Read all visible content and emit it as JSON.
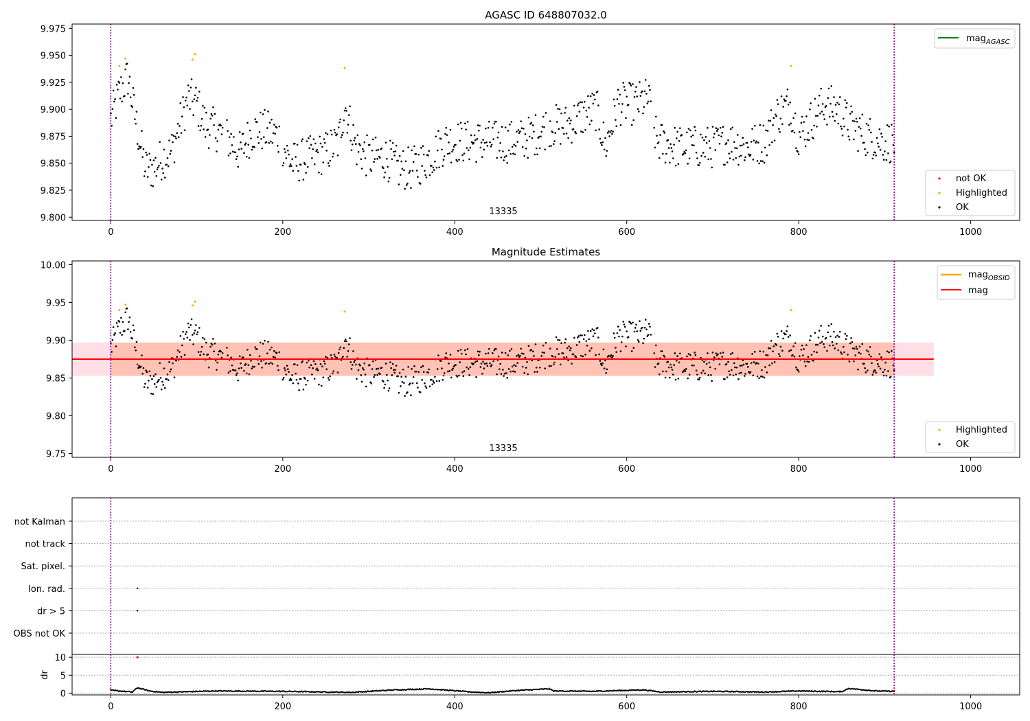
{
  "colors": {
    "ok": "#000000",
    "highlighted": "#ffa500",
    "not_ok": "#ff0000",
    "mag_agasc": "#008000",
    "mag_obsid": "#ffa500",
    "mag": "#ff0000",
    "band_outer": "#ffc0cb",
    "band_inner": "#ffa07a",
    "vline": "#800080"
  },
  "chart_data": [
    {
      "type": "scatter",
      "title": "AGASC ID 648807032.0",
      "xlim": [
        -45,
        1057
      ],
      "ylim": [
        9.797,
        9.979
      ],
      "xticks": [
        "0",
        "200",
        "400",
        "600",
        "800",
        "1000"
      ],
      "yticks": [
        "9.800",
        "9.825",
        "9.850",
        "9.875",
        "9.900",
        "9.925",
        "9.950",
        "9.975"
      ],
      "annotation": "13335",
      "vlines": [
        0,
        911
      ],
      "legend_top": [
        {
          "label": "mag",
          "sub": "AGASC",
          "color": "#008000"
        }
      ],
      "legend_bottom": [
        {
          "label": "not OK",
          "color": "#ff0000"
        },
        {
          "label": "Highlighted",
          "color": "#ffa500"
        },
        {
          "label": "OK",
          "color": "#000000"
        }
      ],
      "highlighted": [
        [
          10,
          9.94
        ],
        [
          17,
          9.947
        ],
        [
          95,
          9.946
        ],
        [
          98,
          9.951
        ],
        [
          272,
          9.938
        ],
        [
          791,
          9.94
        ]
      ],
      "ok_series_note": "",
      "ok_anchors": [
        [
          0,
          9.89
        ],
        [
          10,
          9.915
        ],
        [
          20,
          9.93
        ],
        [
          30,
          9.885
        ],
        [
          40,
          9.845
        ],
        [
          50,
          9.845
        ],
        [
          60,
          9.855
        ],
        [
          70,
          9.86
        ],
        [
          80,
          9.885
        ],
        [
          90,
          9.91
        ],
        [
          100,
          9.905
        ],
        [
          110,
          9.885
        ],
        [
          125,
          9.88
        ],
        [
          140,
          9.87
        ],
        [
          150,
          9.86
        ],
        [
          165,
          9.88
        ],
        [
          180,
          9.88
        ],
        [
          195,
          9.875
        ],
        [
          210,
          9.85
        ],
        [
          230,
          9.855
        ],
        [
          250,
          9.86
        ],
        [
          265,
          9.87
        ],
        [
          272,
          9.905
        ],
        [
          285,
          9.865
        ],
        [
          300,
          9.855
        ],
        [
          320,
          9.855
        ],
        [
          335,
          9.845
        ],
        [
          350,
          9.845
        ],
        [
          370,
          9.855
        ],
        [
          390,
          9.87
        ],
        [
          410,
          9.87
        ],
        [
          430,
          9.87
        ],
        [
          450,
          9.87
        ],
        [
          470,
          9.87
        ],
        [
          490,
          9.875
        ],
        [
          510,
          9.885
        ],
        [
          530,
          9.885
        ],
        [
          550,
          9.895
        ],
        [
          565,
          9.9
        ],
        [
          575,
          9.865
        ],
        [
          590,
          9.905
        ],
        [
          610,
          9.905
        ],
        [
          625,
          9.91
        ],
        [
          635,
          9.87
        ],
        [
          660,
          9.865
        ],
        [
          680,
          9.865
        ],
        [
          700,
          9.865
        ],
        [
          720,
          9.87
        ],
        [
          740,
          9.865
        ],
        [
          760,
          9.87
        ],
        [
          775,
          9.895
        ],
        [
          790,
          9.905
        ],
        [
          800,
          9.875
        ],
        [
          815,
          9.89
        ],
        [
          830,
          9.905
        ],
        [
          845,
          9.9
        ],
        [
          860,
          9.885
        ],
        [
          880,
          9.875
        ],
        [
          900,
          9.87
        ],
        [
          911,
          9.87
        ]
      ]
    },
    {
      "type": "scatter",
      "title": "Magnitude Estimates",
      "xlim": [
        -45,
        1057
      ],
      "ylim": [
        9.745,
        10.005
      ],
      "xticks": [
        "0",
        "200",
        "400",
        "600",
        "800",
        "1000"
      ],
      "yticks": [
        "9.75",
        "9.80",
        "9.85",
        "9.90",
        "9.95",
        "10.00"
      ],
      "annotation": "13335",
      "vlines": [
        0,
        911
      ],
      "mag": 9.875,
      "band_outer": [
        9.853,
        9.897
      ],
      "band_inner": [
        9.853,
        9.897
      ],
      "band_x": [
        -45,
        957
      ],
      "legend_top": [
        {
          "label": "mag",
          "sub": "OBSID",
          "color": "#ffa500"
        },
        {
          "label": "mag",
          "sub": "",
          "color": "#ff0000"
        }
      ],
      "legend_bottom": [
        {
          "label": "Highlighted",
          "color": "#ffa500"
        },
        {
          "label": "OK",
          "color": "#000000"
        }
      ],
      "highlighted": [
        [
          10,
          9.94
        ],
        [
          17,
          9.947
        ],
        [
          95,
          9.946
        ],
        [
          98,
          9.951
        ],
        [
          272,
          9.938
        ],
        [
          791,
          9.94
        ]
      ]
    },
    {
      "type": "scatter",
      "xlim": [
        -45,
        1057
      ],
      "xticks": [
        "0",
        "200",
        "400",
        "600",
        "800",
        "1000"
      ],
      "flag_labels": [
        "not Kalman",
        "not track",
        "Sat. pixel.",
        "Ion. rad.",
        "dr > 5",
        "OBS not OK"
      ],
      "flag_points": [
        {
          "flag": "Ion. rad.",
          "x": 31
        },
        {
          "flag": "dr > 5",
          "x": 31
        }
      ],
      "ylabel": "dr",
      "ylim": [
        -0.5,
        10.8
      ],
      "yticks": [
        "0",
        "5",
        "10"
      ],
      "vlines": [
        0,
        911
      ],
      "dr_outlier": [
        31,
        10
      ],
      "dr_anchors": [
        [
          0,
          0.8
        ],
        [
          25,
          0.3
        ],
        [
          31,
          1.5
        ],
        [
          45,
          0.6
        ],
        [
          60,
          0.2
        ],
        [
          120,
          0.6
        ],
        [
          200,
          0.5
        ],
        [
          280,
          0.2
        ],
        [
          330,
          0.9
        ],
        [
          370,
          1.2
        ],
        [
          420,
          0.3
        ],
        [
          440,
          0.1
        ],
        [
          470,
          0.7
        ],
        [
          510,
          1.2
        ],
        [
          515,
          0.6
        ],
        [
          560,
          0.5
        ],
        [
          620,
          0.9
        ],
        [
          640,
          0.3
        ],
        [
          700,
          0.5
        ],
        [
          760,
          0.3
        ],
        [
          800,
          0.6
        ],
        [
          850,
          0.4
        ],
        [
          858,
          1.3
        ],
        [
          890,
          0.6
        ],
        [
          911,
          0.5
        ]
      ]
    }
  ]
}
